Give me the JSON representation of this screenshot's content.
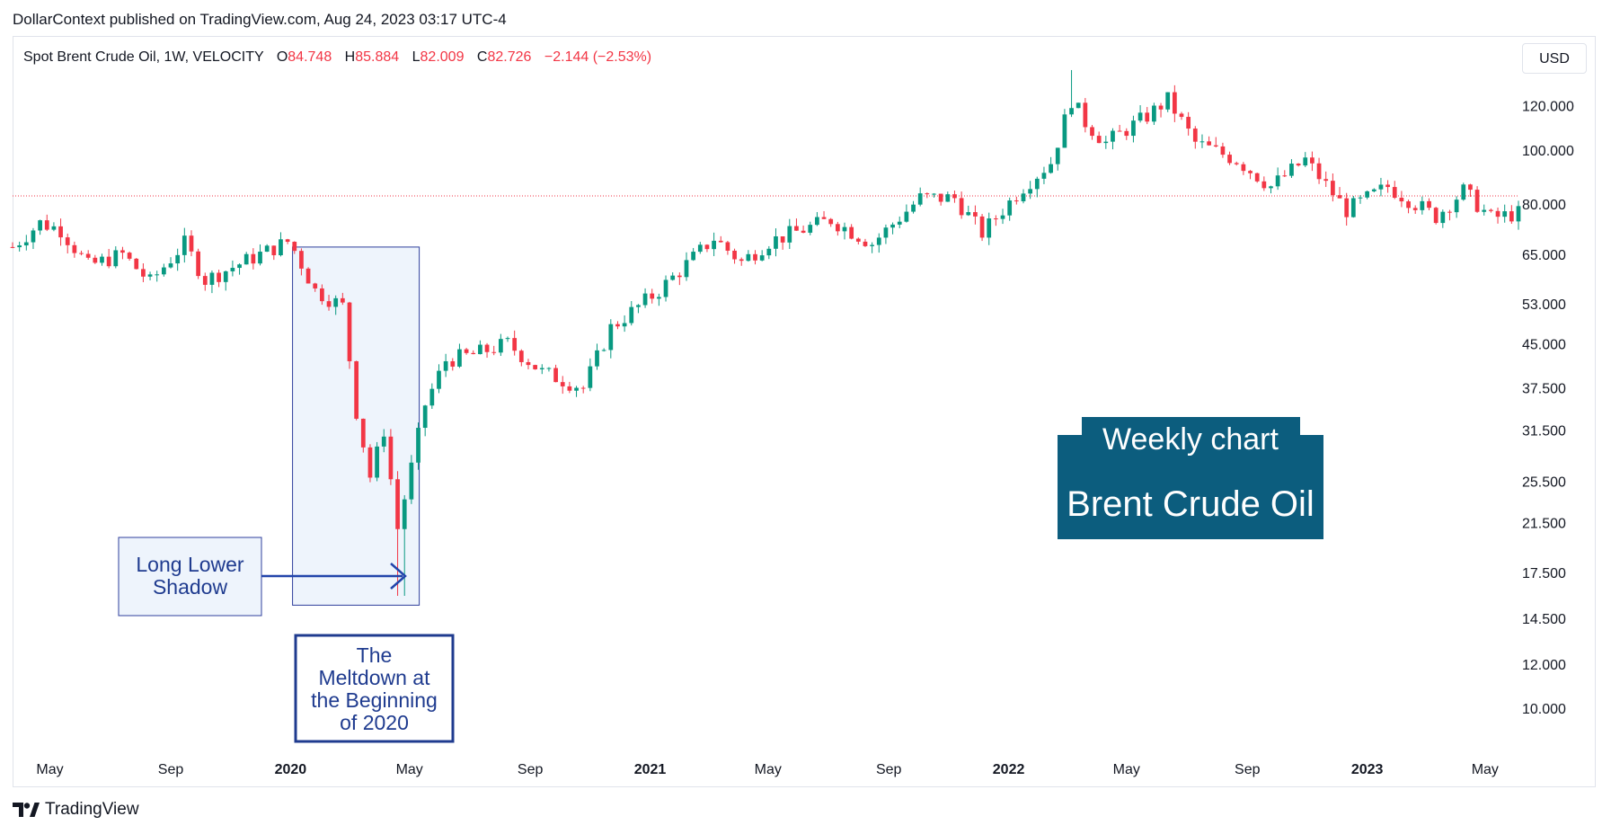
{
  "header": {
    "publisher": "DollarContext published on TradingView.com, Aug 24, 2023 03:17 UTC-4"
  },
  "legend": {
    "symbol": "Spot Brent Crude Oil, 1W, VELOCITY",
    "open_label": "O",
    "open": "84.748",
    "high_label": "H",
    "high": "85.884",
    "low_label": "L",
    "low": "82.009",
    "close_label": "C",
    "close": "82.726",
    "change": "−2.144 (−2.53%)"
  },
  "currency": "USD",
  "annotations": {
    "shadow_label": "Long Lower Shadow",
    "meltdown_label": "The Meltdown at the Beginning of 2020",
    "weekly_label": "Weekly chart",
    "asset_label": "Brent Crude Oil"
  },
  "footer": {
    "brand": "TradingView"
  },
  "chart_data": {
    "type": "candlestick",
    "title": "Spot Brent Crude Oil, 1W, VELOCITY",
    "y_scale": "log",
    "ylim": [
      8.5,
      160
    ],
    "y_ticks": [
      10,
      12,
      14.5,
      17.5,
      21.5,
      25.5,
      31.5,
      37.5,
      45,
      53,
      65,
      80,
      100,
      120
    ],
    "y_tick_labels": [
      "10.000",
      "12.000",
      "14.500",
      "17.500",
      "21.500",
      "25.500",
      "31.500",
      "37.500",
      "45.000",
      "53.000",
      "65.000",
      "80.000",
      "100.000",
      "120.000"
    ],
    "x_range": [
      "2019-03-24",
      "2023-06-04"
    ],
    "x_ticks": [
      {
        "date": "2019-05-01",
        "label": "May",
        "bold": false
      },
      {
        "date": "2019-09-01",
        "label": "Sep",
        "bold": false
      },
      {
        "date": "2020-01-01",
        "label": "2020",
        "bold": true
      },
      {
        "date": "2020-05-01",
        "label": "May",
        "bold": false
      },
      {
        "date": "2020-09-01",
        "label": "Sep",
        "bold": false
      },
      {
        "date": "2021-01-01",
        "label": "2021",
        "bold": true
      },
      {
        "date": "2021-05-01",
        "label": "May",
        "bold": false
      },
      {
        "date": "2021-09-01",
        "label": "Sep",
        "bold": false
      },
      {
        "date": "2022-01-01",
        "label": "2022",
        "bold": true
      },
      {
        "date": "2022-05-01",
        "label": "May",
        "bold": false
      },
      {
        "date": "2022-09-01",
        "label": "Sep",
        "bold": false
      },
      {
        "date": "2023-01-01",
        "label": "2023",
        "bold": true
      },
      {
        "date": "2023-05-01",
        "label": "May",
        "bold": false
      }
    ],
    "reference_line": 82.726,
    "highlight_range": {
      "from": "2020-01-03",
      "to": "2020-05-11",
      "low": 15.3,
      "high": 67
    },
    "colors": {
      "up": "#089981",
      "down": "#f23645",
      "highlight_fill": "#eef4fc",
      "highlight_border": "#2f3f9c",
      "weekly_box": "#0c5d7e"
    },
    "anchors": [
      [
        "2019-03-24",
        67.0
      ],
      [
        "2019-04-21",
        74.0
      ],
      [
        "2019-05-12",
        72.0
      ],
      [
        "2019-06-09",
        62.0
      ],
      [
        "2019-07-14",
        65.0
      ],
      [
        "2019-08-11",
        58.0
      ],
      [
        "2019-09-15",
        68.0
      ],
      [
        "2019-10-06",
        58.5
      ],
      [
        "2019-11-10",
        62.5
      ],
      [
        "2019-12-29",
        68.5
      ],
      [
        "2020-01-05",
        66.0
      ],
      [
        "2020-01-26",
        56.0
      ],
      [
        "2020-02-23",
        52.5
      ],
      [
        "2020-03-08",
        34.0
      ],
      [
        "2020-03-22",
        26.0
      ],
      [
        "2020-04-05",
        31.5
      ],
      [
        "2020-04-19",
        21.0
      ],
      [
        "2020-05-03",
        27.0
      ],
      [
        "2020-05-17",
        35.0
      ],
      [
        "2020-06-07",
        42.0
      ],
      [
        "2020-07-05",
        43.0
      ],
      [
        "2020-08-09",
        45.0
      ],
      [
        "2020-09-13",
        40.0
      ],
      [
        "2020-10-25",
        37.5
      ],
      [
        "2020-11-22",
        48.0
      ],
      [
        "2021-01-10",
        56.0
      ],
      [
        "2021-03-07",
        69.5
      ],
      [
        "2021-04-04",
        63.0
      ],
      [
        "2021-05-02",
        68.5
      ],
      [
        "2021-07-04",
        75.0
      ],
      [
        "2021-08-15",
        68.0
      ],
      [
        "2021-10-03",
        82.0
      ],
      [
        "2021-11-07",
        82.0
      ],
      [
        "2021-12-05",
        71.0
      ],
      [
        "2022-01-16",
        86.0
      ],
      [
        "2022-02-13",
        95.0
      ],
      [
        "2022-03-06",
        123.0
      ],
      [
        "2022-03-20",
        112.0
      ],
      [
        "2022-04-10",
        103.0
      ],
      [
        "2022-05-22",
        115.0
      ],
      [
        "2022-06-12",
        123.0
      ],
      [
        "2022-07-10",
        103.0
      ],
      [
        "2022-08-21",
        96.0
      ],
      [
        "2022-09-25",
        86.0
      ],
      [
        "2022-10-30",
        96.0
      ],
      [
        "2022-12-11",
        78.0
      ],
      [
        "2023-01-22",
        86.0
      ],
      [
        "2023-03-12",
        76.0
      ],
      [
        "2023-04-09",
        84.5
      ],
      [
        "2023-05-07",
        75.5
      ],
      [
        "2023-06-04",
        77.0
      ]
    ]
  }
}
